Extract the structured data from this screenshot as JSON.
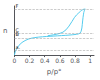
{
  "chart_data": {
    "type": "line",
    "xlabel": "p/p°",
    "ylabel": "n",
    "series": [
      {
        "color": "#55ccee",
        "x": [
          0.0,
          0.01,
          0.03,
          0.06,
          0.1,
          0.14,
          0.18,
          0.22,
          0.27,
          0.32,
          0.37,
          0.42,
          0.47,
          0.52,
          0.57,
          0.62,
          0.67,
          0.72,
          0.77,
          0.82,
          0.85,
          0.87,
          0.88,
          0.89,
          0.895,
          0.9,
          0.905,
          0.91,
          0.915,
          0.92,
          0.925,
          0.93,
          0.935
        ],
        "values": [
          0.0,
          0.07,
          0.14,
          0.21,
          0.27,
          0.31,
          0.34,
          0.36,
          0.375,
          0.385,
          0.392,
          0.398,
          0.402,
          0.407,
          0.412,
          0.417,
          0.422,
          0.428,
          0.435,
          0.444,
          0.456,
          0.475,
          0.51,
          0.58,
          0.65,
          0.73,
          0.8,
          0.86,
          0.91,
          0.94,
          0.96,
          0.975,
          0.985
        ]
      },
      {
        "color": "#55ccee",
        "x": [
          0.935,
          0.93,
          0.92,
          0.91,
          0.9,
          0.89,
          0.88,
          0.87,
          0.85,
          0.82,
          0.79,
          0.76,
          0.72,
          0.68,
          0.64,
          0.6,
          0.56,
          0.52,
          0.48,
          0.44
        ],
        "values": [
          0.985,
          0.985,
          0.982,
          0.978,
          0.97,
          0.96,
          0.95,
          0.935,
          0.905,
          0.86,
          0.8,
          0.72,
          0.62,
          0.54,
          0.49,
          0.465,
          0.448,
          0.435,
          0.424,
          0.415
        ]
      }
    ],
    "reference_lines": {
      "color": "#aaaaaa",
      "line_style": "dashed",
      "values": [
        0.1,
        0.37,
        0.46,
        0.985
      ],
      "labels": [
        "a.",
        "B",
        "C",
        "F"
      ]
    },
    "xlim": [
      0,
      1.05
    ],
    "ylim": [
      0,
      1.05
    ],
    "xticks": [
      0,
      0.2,
      0.4,
      0.6,
      0.8,
      1
    ],
    "yticks": [],
    "grid": false,
    "tick_labels": "x"
  }
}
